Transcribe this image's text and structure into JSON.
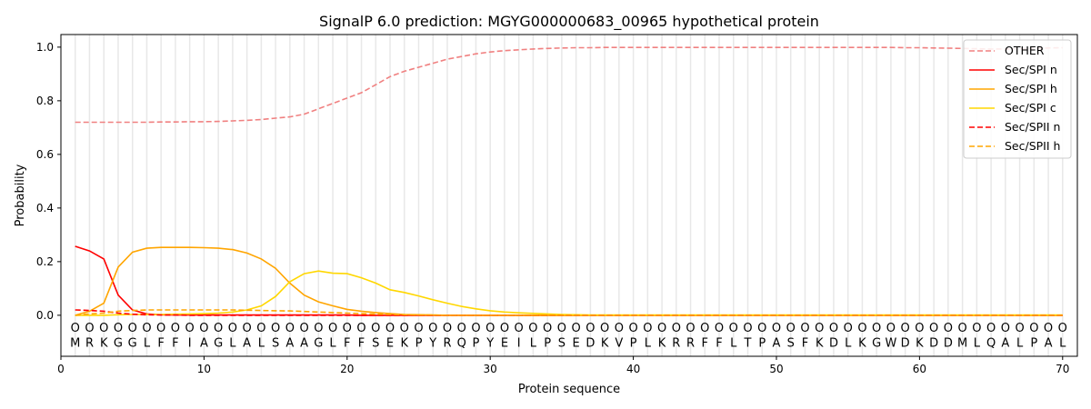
{
  "chart_data": {
    "type": "line",
    "title": "SignalP 6.0 prediction: MGYG000000683_00965 hypothetical protein",
    "xlabel": "Protein sequence",
    "ylabel": "Probability",
    "xlim": [
      0,
      71.03
    ],
    "ylim": [
      -0.153,
      1.047
    ],
    "xticks": [
      0,
      10,
      20,
      30,
      40,
      50,
      60,
      70
    ],
    "yticks": [
      0.0,
      0.2,
      0.4,
      0.6,
      0.8,
      1.0
    ],
    "grid": "vertical lines at each residue",
    "legend_position": "top-right",
    "sequence": [
      "M",
      "R",
      "K",
      "G",
      "G",
      "L",
      "F",
      "F",
      "I",
      "A",
      "G",
      "L",
      "A",
      "L",
      "S",
      "A",
      "A",
      "G",
      "L",
      "F",
      "F",
      "S",
      "E",
      "K",
      "P",
      "Y",
      "R",
      "Q",
      "P",
      "Y",
      "E",
      "I",
      "L",
      "P",
      "S",
      "E",
      "D",
      "K",
      "V",
      "P",
      "L",
      "K",
      "R",
      "R",
      "F",
      "F",
      "L",
      "T",
      "P",
      "A",
      "S",
      "F",
      "K",
      "D",
      "L",
      "K",
      "G",
      "W",
      "D",
      "K",
      "D",
      "D",
      "M",
      "L",
      "Q",
      "A",
      "L",
      "P",
      "A",
      "L"
    ],
    "region_marker": "O",
    "series": [
      {
        "name": "OTHER",
        "color": "#f08080",
        "dash": true,
        "values": [
          0.72,
          0.72,
          0.72,
          0.72,
          0.72,
          0.72,
          0.721,
          0.721,
          0.722,
          0.722,
          0.723,
          0.725,
          0.727,
          0.73,
          0.735,
          0.74,
          0.75,
          0.77,
          0.79,
          0.81,
          0.83,
          0.86,
          0.89,
          0.91,
          0.925,
          0.94,
          0.955,
          0.965,
          0.975,
          0.982,
          0.987,
          0.99,
          0.993,
          0.995,
          0.997,
          0.998,
          0.998,
          0.999,
          0.999,
          0.999,
          0.999,
          0.999,
          0.999,
          0.999,
          0.999,
          0.999,
          0.999,
          0.999,
          0.999,
          0.999,
          0.999,
          0.999,
          0.999,
          0.999,
          0.999,
          0.999,
          0.999,
          0.999,
          0.998,
          0.998,
          0.997,
          0.996,
          0.995,
          0.994,
          0.993,
          0.993,
          0.994,
          0.995,
          0.997,
          0.998
        ]
      },
      {
        "name": "Sec/SPI n",
        "color": "#ff0000",
        "dash": false,
        "values": [
          0.257,
          0.24,
          0.21,
          0.075,
          0.02,
          0.005,
          0.002,
          0.001,
          0.001,
          0.001,
          0.001,
          0.001,
          0.001,
          0.001,
          0.001,
          0.001,
          0.001,
          0.001,
          0.001,
          0.001,
          0,
          0,
          0,
          0,
          0,
          0,
          0,
          0,
          0,
          0,
          0,
          0,
          0,
          0,
          0,
          0,
          0,
          0,
          0,
          0,
          0,
          0,
          0,
          0,
          0,
          0,
          0,
          0,
          0,
          0,
          0,
          0,
          0,
          0,
          0,
          0,
          0,
          0,
          0,
          0,
          0,
          0,
          0,
          0,
          0,
          0,
          0,
          0,
          0,
          0
        ]
      },
      {
        "name": "Sec/SPI h",
        "color": "#ffa500",
        "dash": false,
        "values": [
          0,
          0.015,
          0.045,
          0.18,
          0.235,
          0.25,
          0.253,
          0.253,
          0.253,
          0.252,
          0.25,
          0.245,
          0.232,
          0.21,
          0.175,
          0.12,
          0.075,
          0.05,
          0.035,
          0.022,
          0.015,
          0.01,
          0.006,
          0.003,
          0.002,
          0.001,
          0,
          0,
          0,
          0,
          0,
          0,
          0,
          0,
          0,
          0,
          0,
          0,
          0,
          0,
          0,
          0,
          0,
          0,
          0,
          0,
          0,
          0,
          0,
          0,
          0,
          0,
          0,
          0,
          0,
          0,
          0,
          0,
          0,
          0,
          0,
          0,
          0,
          0,
          0,
          0,
          0,
          0,
          0,
          0
        ]
      },
      {
        "name": "Sec/SPI c",
        "color": "#ffd700",
        "dash": false,
        "values": [
          0,
          0,
          0,
          0.002,
          0.003,
          0.003,
          0.003,
          0.004,
          0.005,
          0.006,
          0.008,
          0.012,
          0.02,
          0.035,
          0.07,
          0.125,
          0.155,
          0.165,
          0.157,
          0.155,
          0.14,
          0.12,
          0.095,
          0.085,
          0.072,
          0.058,
          0.045,
          0.033,
          0.024,
          0.017,
          0.012,
          0.009,
          0.007,
          0.005,
          0.003,
          0.002,
          0.001,
          0.001,
          0.001,
          0.001,
          0.001,
          0.001,
          0.001,
          0.001,
          0.001,
          0.001,
          0.001,
          0.001,
          0.001,
          0.001,
          0.001,
          0.001,
          0.001,
          0.001,
          0.001,
          0.001,
          0.001,
          0.001,
          0.001,
          0.001,
          0.001,
          0.001,
          0.001,
          0.001,
          0.001,
          0.001,
          0.001,
          0.001,
          0.001,
          0.001
        ]
      },
      {
        "name": "Sec/SPII n",
        "color": "#ff0000",
        "dash": true,
        "values": [
          0.02,
          0.018,
          0.015,
          0.008,
          0.004,
          0.002,
          0.001,
          0.001,
          0,
          0,
          0,
          0,
          0,
          0,
          0,
          0,
          0,
          0,
          0,
          0,
          0,
          0,
          0,
          0,
          0,
          0,
          0,
          0,
          0,
          0,
          0,
          0,
          0,
          0,
          0,
          0,
          0,
          0,
          0,
          0,
          0,
          0,
          0,
          0,
          0,
          0,
          0,
          0,
          0,
          0,
          0,
          0,
          0,
          0,
          0,
          0,
          0,
          0,
          0,
          0,
          0,
          0,
          0,
          0,
          0,
          0,
          0,
          0,
          0,
          0
        ]
      },
      {
        "name": "Sec/SPII h",
        "color": "#ffa500",
        "dash": true,
        "values": [
          0,
          0.005,
          0.008,
          0.015,
          0.018,
          0.02,
          0.02,
          0.02,
          0.02,
          0.02,
          0.02,
          0.02,
          0.019,
          0.018,
          0.017,
          0.016,
          0.014,
          0.012,
          0.01,
          0.008,
          0.006,
          0.004,
          0.003,
          0.002,
          0.001,
          0.001,
          0,
          0,
          0,
          0,
          0,
          0,
          0,
          0,
          0,
          0,
          0,
          0,
          0,
          0,
          0,
          0,
          0,
          0,
          0,
          0,
          0,
          0,
          0,
          0,
          0,
          0,
          0,
          0,
          0,
          0,
          0,
          0,
          0,
          0,
          0,
          0,
          0,
          0,
          0,
          0,
          0,
          0,
          0,
          0
        ]
      }
    ]
  }
}
